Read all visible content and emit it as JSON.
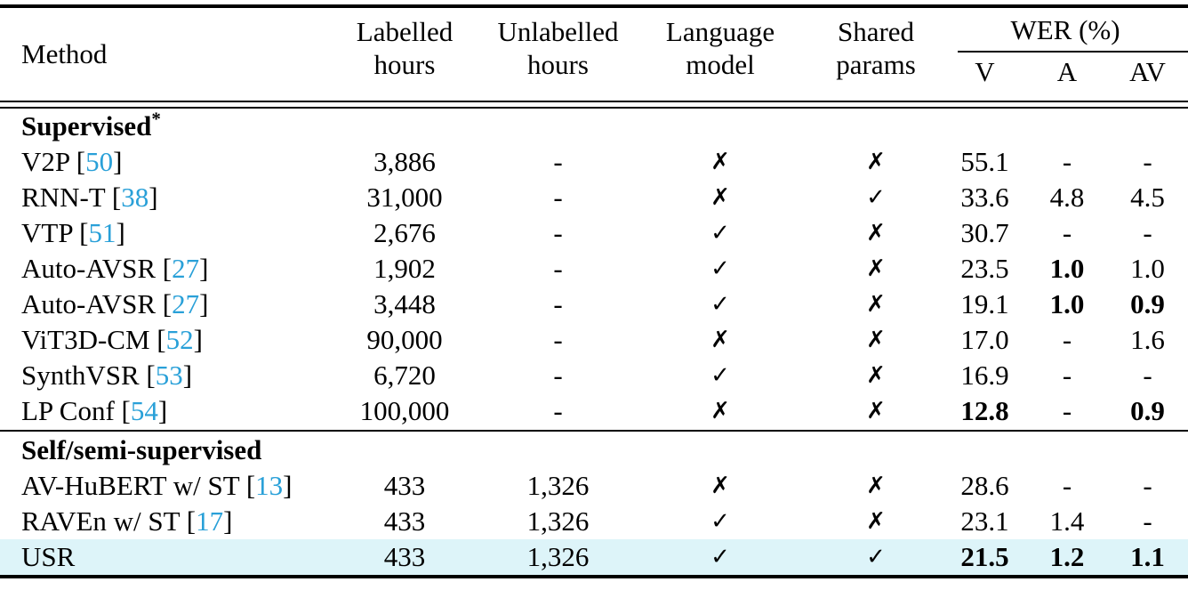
{
  "table": {
    "colors": {
      "citation": "#29a0d8",
      "highlight": "#ddf4f9",
      "rule": "#000000"
    },
    "glyphs": {
      "check": "✓",
      "cross": "✗",
      "missing": "-"
    },
    "header": {
      "method": "Method",
      "labelled_line1": "Labelled",
      "labelled_line2": "hours",
      "unlabelled_line1": "Unlabelled",
      "unlabelled_line2": "hours",
      "language_line1": "Language",
      "language_line2": "model",
      "shared_line1": "Shared",
      "shared_line2": "params",
      "wer_group": "WER (%)",
      "wer_v": "V",
      "wer_a": "A",
      "wer_av": "AV"
    },
    "rows": [
      {
        "type": "section",
        "label": "Supervised",
        "sup": "*"
      },
      {
        "type": "data",
        "method": "V2P",
        "ref": "50",
        "labelled": "3,886",
        "unlabelled": "-",
        "lm": "no",
        "shared": "no",
        "wer": [
          {
            "text": "55.1",
            "bold": false
          },
          {
            "text": "-",
            "bold": false
          },
          {
            "text": "-",
            "bold": false
          }
        ]
      },
      {
        "type": "data",
        "method": "RNN-T",
        "ref": "38",
        "labelled": "31,000",
        "unlabelled": "-",
        "lm": "no",
        "shared": "yes",
        "wer": [
          {
            "text": "33.6",
            "bold": false
          },
          {
            "text": "4.8",
            "bold": false
          },
          {
            "text": "4.5",
            "bold": false
          }
        ]
      },
      {
        "type": "data",
        "method": "VTP",
        "ref": "51",
        "labelled": "2,676",
        "unlabelled": "-",
        "lm": "yes",
        "shared": "no",
        "wer": [
          {
            "text": "30.7",
            "bold": false
          },
          {
            "text": "-",
            "bold": false
          },
          {
            "text": "-",
            "bold": false
          }
        ]
      },
      {
        "type": "data",
        "method": "Auto-AVSR",
        "ref": "27",
        "labelled": "1,902",
        "unlabelled": "-",
        "lm": "yes",
        "shared": "no",
        "wer": [
          {
            "text": "23.5",
            "bold": false
          },
          {
            "text": "1.0",
            "bold": true
          },
          {
            "text": "1.0",
            "bold": false
          }
        ]
      },
      {
        "type": "data",
        "method": "Auto-AVSR",
        "ref": "27",
        "labelled": "3,448",
        "unlabelled": "-",
        "lm": "yes",
        "shared": "no",
        "wer": [
          {
            "text": "19.1",
            "bold": false
          },
          {
            "text": "1.0",
            "bold": true
          },
          {
            "text": "0.9",
            "bold": true
          }
        ]
      },
      {
        "type": "data",
        "method": "ViT3D-CM",
        "ref": "52",
        "labelled": "90,000",
        "unlabelled": "-",
        "lm": "no",
        "shared": "no",
        "wer": [
          {
            "text": "17.0",
            "bold": false
          },
          {
            "text": "-",
            "bold": false
          },
          {
            "text": "1.6",
            "bold": false
          }
        ]
      },
      {
        "type": "data",
        "method": "SynthVSR",
        "ref": "53",
        "labelled": "6,720",
        "unlabelled": "-",
        "lm": "yes",
        "shared": "no",
        "wer": [
          {
            "text": "16.9",
            "bold": false
          },
          {
            "text": "-",
            "bold": false
          },
          {
            "text": "-",
            "bold": false
          }
        ]
      },
      {
        "type": "data",
        "method": "LP Conf",
        "ref": "54",
        "labelled": "100,000",
        "unlabelled": "-",
        "lm": "no",
        "shared": "no",
        "wer": [
          {
            "text": "12.8",
            "bold": true
          },
          {
            "text": "-",
            "bold": false
          },
          {
            "text": "0.9",
            "bold": true
          }
        ]
      },
      {
        "type": "divider"
      },
      {
        "type": "section",
        "label": "Self/semi-supervised",
        "sup": ""
      },
      {
        "type": "data",
        "method": "AV-HuBERT w/ ST",
        "ref": "13",
        "labelled": "433",
        "unlabelled": "1,326",
        "lm": "no",
        "shared": "no",
        "wer": [
          {
            "text": "28.6",
            "bold": false
          },
          {
            "text": "-",
            "bold": false
          },
          {
            "text": "-",
            "bold": false
          }
        ]
      },
      {
        "type": "data",
        "method": "RAVEn w/ ST",
        "ref": "17",
        "labelled": "433",
        "unlabelled": "1,326",
        "lm": "yes",
        "shared": "no",
        "wer": [
          {
            "text": "23.1",
            "bold": false
          },
          {
            "text": "1.4",
            "bold": false
          },
          {
            "text": "-",
            "bold": false
          }
        ]
      },
      {
        "type": "data",
        "method": "USR",
        "ref": null,
        "labelled": "433",
        "unlabelled": "1,326",
        "lm": "yes",
        "shared": "yes",
        "highlight": true,
        "wer": [
          {
            "text": "21.5",
            "bold": true
          },
          {
            "text": "1.2",
            "bold": true
          },
          {
            "text": "1.1",
            "bold": true
          }
        ]
      }
    ]
  }
}
